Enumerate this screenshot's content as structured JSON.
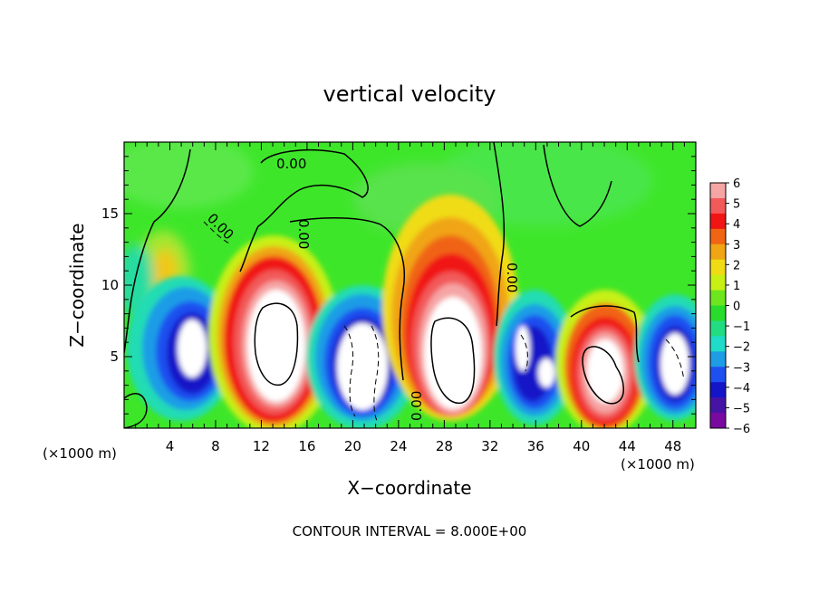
{
  "chart_data": {
    "type": "heatmap",
    "title": "vertical velocity",
    "xlabel": "X−coordinate",
    "ylabel": "Z−coordinate",
    "x_unit_label": "(×1000 m)",
    "y_unit_label": "(×1000 m)",
    "footer": "CONTOUR INTERVAL = 8.000E+00",
    "xlim": [
      0,
      50
    ],
    "ylim": [
      0,
      20
    ],
    "x_ticks": [
      "4",
      "8",
      "12",
      "16",
      "20",
      "24",
      "28",
      "32",
      "36",
      "40",
      "44",
      "48"
    ],
    "y_ticks": [
      "5",
      "10",
      "15"
    ],
    "contour_labels": [
      "0.00",
      "0.00",
      "0.00",
      "0.00",
      "0.00"
    ],
    "colorbar": {
      "tick_labels": [
        "6",
        "5",
        "4",
        "3",
        "2",
        "1",
        "0",
        "−1",
        "−2",
        "−3",
        "−4",
        "−5",
        "−6"
      ],
      "range": [
        -6,
        6
      ],
      "colors": [
        "#f6a5a5",
        "#f25a5a",
        "#f01414",
        "#f06414",
        "#f0a514",
        "#f0dc14",
        "#c8f014",
        "#6ee61e",
        "#28dc2d",
        "#23dc82",
        "#1edcc8",
        "#1e9ce6",
        "#1e50f0",
        "#1414c8",
        "#4614a5",
        "#780aa0"
      ]
    },
    "cells": [
      {
        "x": 6,
        "z": 6,
        "value": -6,
        "label": "downdraft"
      },
      {
        "x": 13.5,
        "z": 6,
        "value": 6,
        "label": "updraft"
      },
      {
        "x": 21,
        "z": 5,
        "value": -6,
        "label": "downdraft"
      },
      {
        "x": 29,
        "z": 5.5,
        "value": 6,
        "label": "updraft"
      },
      {
        "x": 36,
        "z": 5,
        "value": -6,
        "label": "downdraft"
      },
      {
        "x": 42,
        "z": 5,
        "value": 6,
        "label": "updraft"
      },
      {
        "x": 47.5,
        "z": 5,
        "value": -6,
        "label": "downdraft"
      }
    ]
  }
}
